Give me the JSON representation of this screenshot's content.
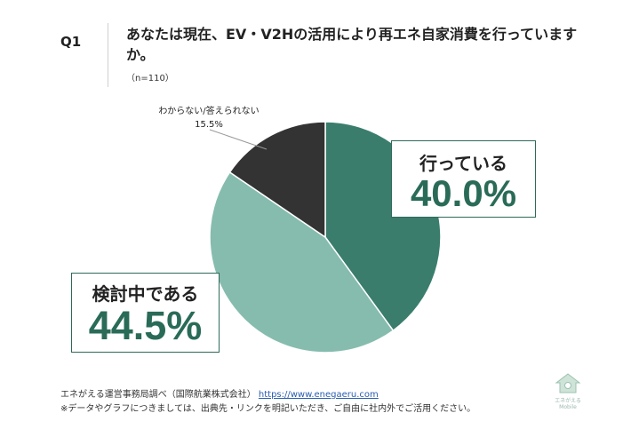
{
  "question_label": "Q1",
  "question_text": "あなたは現在、EV・V2Hの活用により再エネ自家消費を行っていますか。",
  "sample": "（n=110）",
  "chart_data": {
    "type": "pie",
    "start_angle_deg": 0,
    "direction": "clockwise",
    "slices": [
      {
        "label": "行っている",
        "value": 40.0,
        "value_label": "40.0%",
        "color": "#3a7d6c"
      },
      {
        "label": "検討中である",
        "value": 44.5,
        "value_label": "44.5%",
        "color": "#86bcae"
      },
      {
        "label": "わからない/答えられない",
        "value": 15.5,
        "value_label": "15.5%",
        "color": "#333333"
      }
    ]
  },
  "footer": {
    "source": "エネがえる運営事務局調べ（国際航業株式会社）",
    "url": "https://www.enegaeru.com",
    "note": "※データやグラフにつきましては、出典先・リンクを明記いただき、ご自由に社内外でご活用ください。"
  },
  "logo": {
    "line1": "エネがえる",
    "line2": "Mobile"
  }
}
